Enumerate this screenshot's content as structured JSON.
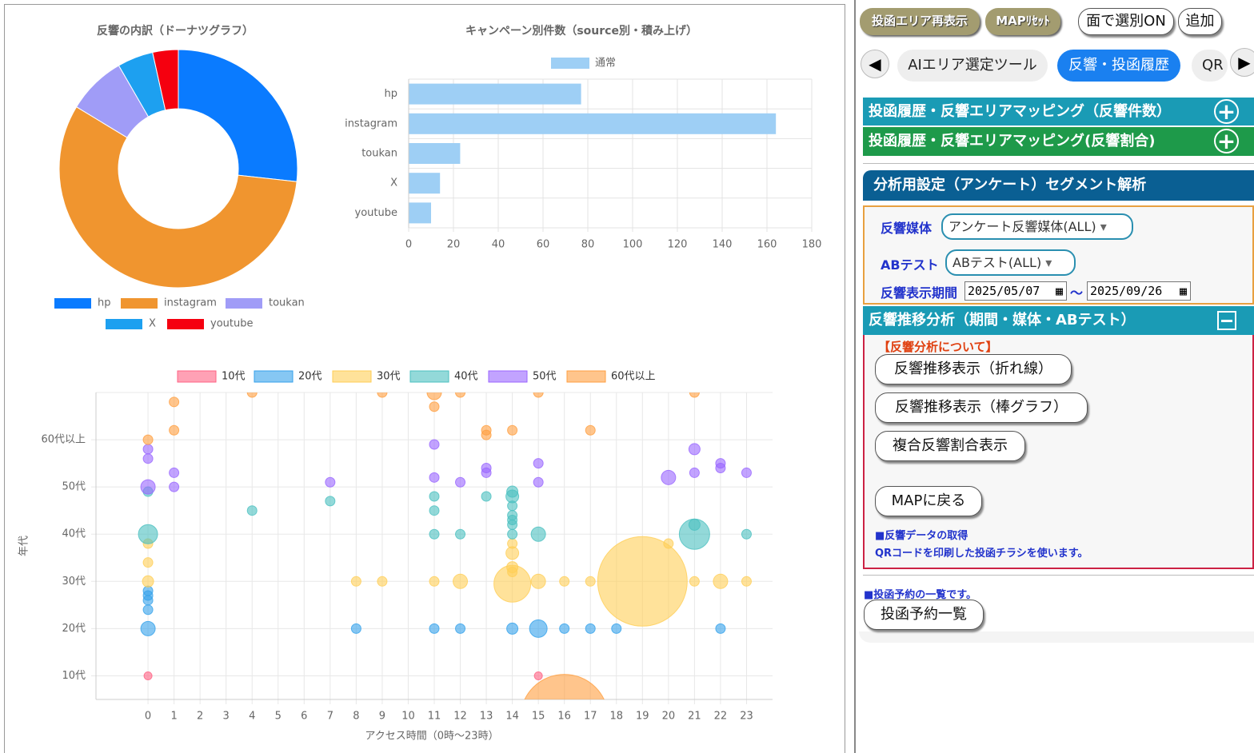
{
  "chart_data": [
    {
      "type": "doughnut",
      "title": "反響の内訳（ドーナツグラフ）",
      "categories": [
        "hp",
        "instagram",
        "toukan",
        "X",
        "youtube"
      ],
      "values": [
        77,
        164,
        23,
        14,
        10
      ],
      "colors": [
        "#0a7bff",
        "#f0952f",
        "#a09cf7",
        "#1da0f0",
        "#f5000f"
      ]
    },
    {
      "type": "bar",
      "orientation": "horizontal",
      "title": "キャンペーン別件数（source別・積み上げ）",
      "categories": [
        "hp",
        "instagram",
        "toukan",
        "X",
        "youtube"
      ],
      "series": [
        {
          "name": "通常",
          "color": "#9ecff5",
          "values": [
            77,
            164,
            23,
            14,
            10
          ]
        }
      ],
      "xlim": [
        0,
        180
      ],
      "xticks": [
        0,
        20,
        40,
        60,
        80,
        100,
        120,
        140,
        160,
        180
      ],
      "grid": true
    },
    {
      "type": "bubble",
      "x_label": "アクセス時間（0時〜23時）",
      "y_label": "年代",
      "xlim": [
        -2,
        24
      ],
      "xticks": [
        0,
        1,
        2,
        3,
        4,
        5,
        6,
        7,
        8,
        9,
        10,
        11,
        12,
        13,
        14,
        15,
        16,
        17,
        18,
        19,
        20,
        21,
        22,
        23
      ],
      "ylim": [
        5,
        70
      ],
      "yticks": [
        {
          "value": 10,
          "label": "10代"
        },
        {
          "value": 20,
          "label": "20代"
        },
        {
          "value": 30,
          "label": "30代"
        },
        {
          "value": 40,
          "label": "40代"
        },
        {
          "value": 50,
          "label": "50代"
        },
        {
          "value": 60,
          "label": "60代以上"
        }
      ],
      "grid": true,
      "series": [
        {
          "name": "10代",
          "color": "#ff6384",
          "x": [
            0,
            15
          ],
          "values": [
            10,
            10
          ],
          "sizes": [
            5,
            5
          ]
        },
        {
          "name": "20代",
          "color": "#36a2eb",
          "x": [
            0,
            0,
            0,
            0,
            0,
            8,
            11,
            12,
            14,
            15,
            16,
            17,
            18,
            22
          ],
          "values": [
            20,
            24,
            26,
            27,
            28,
            20,
            20,
            20,
            20,
            20,
            20,
            20,
            20,
            20
          ],
          "sizes": [
            9,
            6,
            6,
            6,
            6,
            6,
            6,
            6,
            7,
            11,
            6,
            6,
            6,
            6
          ]
        },
        {
          "name": "30代",
          "color": "#ffce56",
          "x": [
            0,
            0,
            0,
            8,
            9,
            11,
            12,
            14,
            14,
            14,
            14,
            14,
            15,
            16,
            17,
            19,
            20,
            21,
            22,
            23
          ],
          "values": [
            30,
            34,
            38,
            30,
            30,
            30,
            30,
            29.5,
            32,
            33,
            36,
            38,
            30,
            30,
            30,
            30,
            38,
            30,
            30,
            30
          ],
          "sizes": [
            7,
            6,
            6,
            6,
            6,
            6,
            9,
            23,
            6,
            7,
            8,
            6,
            9,
            6,
            6,
            56,
            6,
            6,
            9,
            6
          ]
        },
        {
          "name": "40代",
          "color": "#4bc0c0",
          "x": [
            0,
            0,
            4,
            7,
            11,
            11,
            11,
            12,
            13,
            14,
            14,
            14,
            14,
            14,
            14,
            14,
            15,
            21,
            21,
            23
          ],
          "values": [
            40,
            49,
            45,
            47,
            48,
            45,
            40,
            40,
            48,
            49,
            48,
            46,
            44,
            43,
            42,
            40,
            40,
            40,
            42,
            40
          ],
          "sizes": [
            12,
            6,
            6,
            6,
            6,
            6,
            6,
            6,
            6,
            7,
            8,
            6,
            6,
            6,
            6,
            6,
            9,
            19,
            7,
            6
          ]
        },
        {
          "name": "50代",
          "color": "#9966ff",
          "x": [
            0,
            0,
            0,
            1,
            1,
            7,
            11,
            11,
            12,
            13,
            13,
            15,
            15,
            20,
            21,
            21,
            22,
            22,
            23
          ],
          "values": [
            50,
            56,
            58,
            53,
            50,
            51,
            59,
            52,
            51,
            54,
            53,
            55,
            51,
            52,
            58,
            53,
            55,
            54,
            53
          ],
          "sizes": [
            9,
            6,
            6,
            6,
            6,
            6,
            6,
            6,
            6,
            6,
            6,
            6,
            6,
            9,
            7,
            6,
            6,
            6,
            6
          ]
        },
        {
          "name": "60代以上",
          "color": "#ff9f40",
          "x": [
            0,
            1,
            1,
            4,
            9,
            11,
            11,
            12,
            13,
            13,
            14,
            15,
            17,
            21,
            16
          ],
          "values": [
            60,
            68,
            62,
            70,
            70,
            70,
            67,
            70,
            62,
            61,
            62,
            70,
            62,
            70,
            1
          ],
          "sizes": [
            6,
            6,
            6,
            6,
            6,
            9,
            6,
            6,
            6,
            6,
            6,
            6,
            6,
            6,
            55
          ]
        }
      ]
    }
  ],
  "panel": {
    "toolbar": [
      "投函エリア再表示",
      "MAPﾘｾｯﾄ",
      "面で選別ON",
      "追加"
    ],
    "tabs": [
      "AIエリア選定ツール",
      "反響・投函履歴",
      "QR"
    ],
    "accordions": [
      "投函履歴・反響エリアマッピング（反響件数）",
      "投函履歴・反響エリアマッピング(反響割合)"
    ],
    "settings": {
      "title": "分析用設定（アンケート）セグメント解析",
      "media_label": "反響媒体",
      "media_value": "アンケート反響媒体(ALL)",
      "ab_label": "ABテスト",
      "ab_value": "ABテスト(ALL)",
      "period_label": "反響表示期間",
      "date_from": "2025/05/07",
      "separator": "〜",
      "date_to": "2025/09/26"
    },
    "trend": {
      "title": "反響推移分析（期間・媒体・ABテスト）",
      "note": "【反響分析について】",
      "buttons": [
        "反響推移表示（折れ線）",
        "反響推移表示（棒グラフ）",
        "複合反響割合表示",
        "MAPに戻る"
      ],
      "info_title": "■反響データの取得",
      "info_text": "QRコードを印刷した投函チラシを使います。"
    },
    "reservation": {
      "note": "■投函予約の一覧です。",
      "button": "投函予約一覧"
    }
  }
}
